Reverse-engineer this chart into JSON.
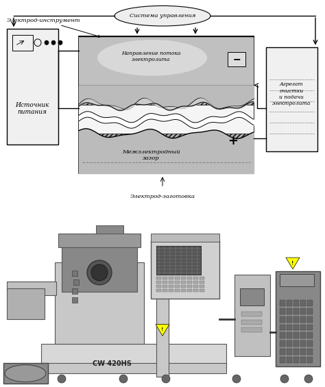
{
  "bg_color": "#ffffff",
  "fig_width": 4.74,
  "fig_height": 5.65,
  "dpi": 100,
  "top_diagram": {
    "system_label": "Система управления",
    "electrode_tool_label": "Электрод-инструмент",
    "source_label": "Источник\nпитания",
    "flow_label": "Направление потока\nэлектролита",
    "gap_label": "Межэлектродный\nзазор",
    "workpiece_label": "Электрод-заготовка",
    "aggregate_label": "Агрегат\nочистки\nи подачи\nэлектролита",
    "minus_label": "−",
    "plus_label": "+"
  },
  "machine_label": "CW 420HS"
}
